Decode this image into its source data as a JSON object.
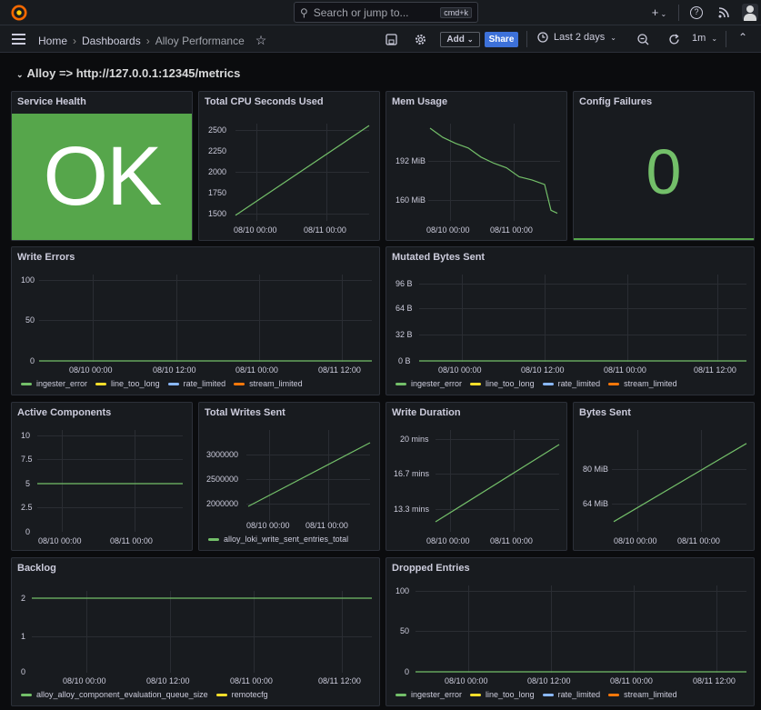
{
  "topbar": {
    "search_placeholder": "Search or jump to...",
    "search_shortcut": "cmd+k",
    "new_label": "+",
    "icons": [
      "grafana-logo-icon",
      "plus-icon",
      "help-icon",
      "rss-icon",
      "user-avatar-icon"
    ]
  },
  "nav": {
    "breadcrumbs": [
      "Home",
      "Dashboards",
      "Alloy Performance"
    ],
    "add_label": "Add",
    "share_label": "Share",
    "time_range": "Last 2 days",
    "refresh_interval": "1m"
  },
  "row": {
    "title": "Alloy => http://127.0.0.1:12345/metrics"
  },
  "colors": {
    "ok_bg": "#56a64b",
    "series_green": "#73bf69",
    "series_yellow": "#fade2a",
    "series_blue": "#8ab8ff",
    "series_orange": "#ff780a",
    "share_button": "#3d71d9"
  },
  "legends": {
    "errors": [
      "ingester_error",
      "line_too_long",
      "rate_limited",
      "stream_limited"
    ],
    "writes": [
      "alloy_loki_write_sent_entries_total"
    ],
    "backlog": [
      "alloy_alloy_component_evaluation_queue_size",
      "remotecfg"
    ]
  },
  "panels": [
    {
      "id": "service-health",
      "title": "Service Health",
      "value": "OK"
    },
    {
      "id": "total-cpu",
      "title": "Total CPU Seconds Used"
    },
    {
      "id": "mem-usage",
      "title": "Mem Usage"
    },
    {
      "id": "config-failures",
      "title": "Config Failures",
      "value": "0"
    },
    {
      "id": "write-errors",
      "title": "Write Errors"
    },
    {
      "id": "mutated-bytes",
      "title": "Mutated Bytes Sent"
    },
    {
      "id": "active-components",
      "title": "Active Components"
    },
    {
      "id": "total-writes",
      "title": "Total Writes Sent"
    },
    {
      "id": "write-duration",
      "title": "Write Duration"
    },
    {
      "id": "bytes-sent",
      "title": "Bytes Sent"
    },
    {
      "id": "backlog",
      "title": "Backlog"
    },
    {
      "id": "dropped-entries",
      "title": "Dropped Entries"
    }
  ],
  "chart_data": [
    {
      "panel": "Total CPU Seconds Used",
      "type": "line",
      "y_ticks": [
        "1500",
        "1750",
        "2000",
        "2250",
        "2500"
      ],
      "x_ticks": [
        "08/10 00:00",
        "08/11 00:00"
      ],
      "series": [
        {
          "x": [
            0,
            1
          ],
          "values": [
            1510,
            2480
          ]
        }
      ],
      "ylim": [
        1450,
        2550
      ]
    },
    {
      "panel": "Mem Usage",
      "type": "line",
      "y_ticks": [
        "160 MiB",
        "192 MiB"
      ],
      "x_ticks": [
        "08/10 00:00",
        "08/11 00:00"
      ],
      "series": [
        {
          "x": [
            0,
            0.1,
            0.2,
            0.3,
            0.4,
            0.5,
            0.6,
            0.7,
            0.8,
            0.9,
            0.95,
            1
          ],
          "values": [
            209,
            203,
            199,
            196,
            190,
            186,
            183,
            177,
            175,
            172,
            155,
            153
          ]
        }
      ],
      "ylim": [
        148,
        215
      ]
    },
    {
      "panel": "Write Errors",
      "type": "line",
      "y_ticks": [
        "0",
        "50",
        "100"
      ],
      "x_ticks": [
        "08/10 00:00",
        "08/10 12:00",
        "08/11 00:00",
        "08/11 12:00"
      ],
      "series": [
        {
          "x": [
            0,
            1
          ],
          "values": [
            0,
            0
          ]
        }
      ],
      "ylim": [
        0,
        100
      ]
    },
    {
      "panel": "Mutated Bytes Sent",
      "type": "line",
      "y_ticks": [
        "0 B",
        "32 B",
        "64 B",
        "96 B"
      ],
      "x_ticks": [
        "08/10 00:00",
        "08/10 12:00",
        "08/11 00:00",
        "08/11 12:00"
      ],
      "series": [
        {
          "x": [
            0,
            1
          ],
          "values": [
            0,
            0
          ]
        }
      ],
      "ylim": [
        0,
        96
      ]
    },
    {
      "panel": "Active Components",
      "type": "line",
      "y_ticks": [
        "0",
        "2.5",
        "5",
        "7.5",
        "10"
      ],
      "x_ticks": [
        "08/10 00:00",
        "08/11 00:00"
      ],
      "series": [
        {
          "x": [
            0,
            1
          ],
          "values": [
            5,
            5
          ]
        }
      ],
      "ylim": [
        0,
        10
      ]
    },
    {
      "panel": "Total Writes Sent",
      "type": "line",
      "y_ticks": [
        "2000000",
        "2500000",
        "3000000"
      ],
      "x_ticks": [
        "08/10 00:00",
        "08/11 00:00"
      ],
      "series": [
        {
          "x": [
            0,
            1
          ],
          "values": [
            1950000,
            3250000
          ]
        }
      ],
      "ylim": [
        1950000,
        3250000
      ]
    },
    {
      "panel": "Write Duration",
      "type": "line",
      "y_ticks": [
        "13.3 mins",
        "16.7 mins",
        "20 mins"
      ],
      "x_ticks": [
        "08/10 00:00",
        "08/11 00:00"
      ],
      "series": [
        {
          "x": [
            0,
            1
          ],
          "values": [
            12.8,
            19.6
          ]
        }
      ],
      "ylim": [
        12.4,
        20.4
      ]
    },
    {
      "panel": "Bytes Sent",
      "type": "line",
      "y_ticks": [
        "64 MiB",
        "80 MiB"
      ],
      "x_ticks": [
        "08/10 00:00",
        "08/11 00:00"
      ],
      "series": [
        {
          "x": [
            0,
            1
          ],
          "values": [
            59,
            95
          ]
        }
      ],
      "ylim": [
        56,
        97
      ]
    },
    {
      "panel": "Backlog",
      "type": "line",
      "y_ticks": [
        "0",
        "1",
        "2"
      ],
      "x_ticks": [
        "08/10 00:00",
        "08/10 12:00",
        "08/11 00:00",
        "08/11 12:00"
      ],
      "series": [
        {
          "x": [
            0,
            1
          ],
          "values": [
            2,
            2
          ]
        }
      ],
      "ylim": [
        0,
        2
      ]
    },
    {
      "panel": "Dropped Entries",
      "type": "line",
      "y_ticks": [
        "0",
        "50",
        "100"
      ],
      "x_ticks": [
        "08/10 00:00",
        "08/10 12:00",
        "08/11 00:00",
        "08/11 12:00"
      ],
      "series": [
        {
          "x": [
            0,
            1
          ],
          "values": [
            0,
            0
          ]
        }
      ],
      "ylim": [
        0,
        100
      ]
    }
  ]
}
